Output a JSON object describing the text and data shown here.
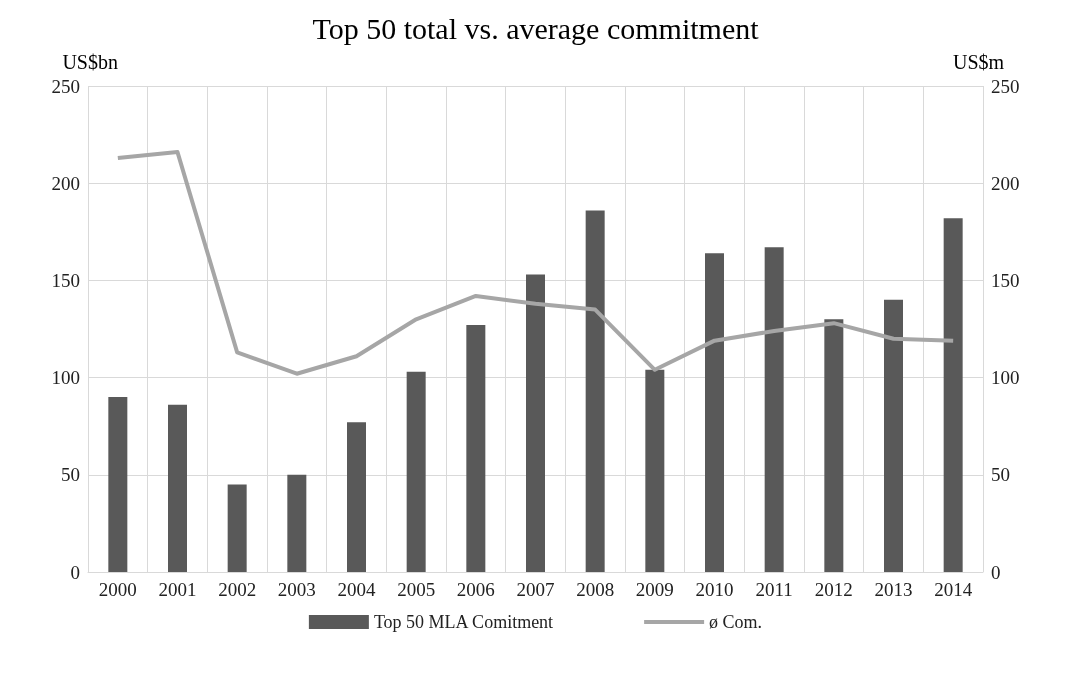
{
  "chart_data": {
    "type": "bar",
    "title": "Top 50 total vs. average commitment",
    "ylabel": "US$bn",
    "y2label": "US$m",
    "categories": [
      "2000",
      "2001",
      "2002",
      "2003",
      "2004",
      "2005",
      "2006",
      "2007",
      "2008",
      "2009",
      "2010",
      "2011",
      "2012",
      "2013",
      "2014"
    ],
    "series": [
      {
        "name": "Top 50 MLA Comitment",
        "color": "#595959",
        "values": [
          90,
          86,
          45,
          50,
          77,
          103,
          127,
          153,
          186,
          104,
          164,
          167,
          130,
          140,
          182
        ]
      },
      {
        "name": "ø Com.",
        "type": "line",
        "axis": "y2",
        "color": "#a6a6a6",
        "values": [
          213,
          216,
          113,
          102,
          111,
          130,
          142,
          138,
          135,
          104,
          119,
          124,
          128,
          120,
          119
        ]
      }
    ],
    "ylim": [
      0,
      250
    ],
    "yticks": [
      0,
      50,
      100,
      150,
      200,
      250
    ],
    "y2lim": [
      0,
      250
    ],
    "y2ticks": [
      0,
      50,
      100,
      150,
      200,
      250
    ],
    "grid": true,
    "legend": "bottom",
    "marker": "none",
    "line_style": "solid"
  }
}
